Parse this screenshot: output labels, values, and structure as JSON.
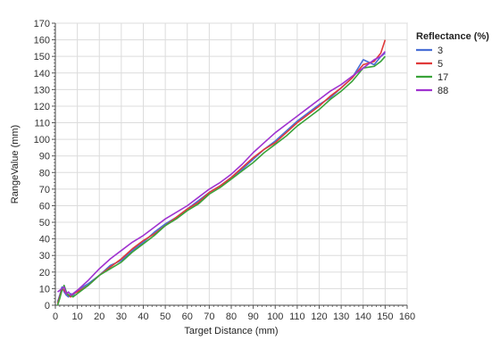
{
  "chart_data": {
    "type": "line",
    "title": "",
    "xlabel": "Target Distance (mm)",
    "ylabel": "RangeValue (mm)",
    "xlim": [
      0,
      160
    ],
    "ylim": [
      0,
      170
    ],
    "xticks": [
      0,
      10,
      20,
      30,
      40,
      50,
      60,
      70,
      80,
      90,
      100,
      110,
      120,
      130,
      140,
      150,
      160
    ],
    "yticks": [
      0,
      10,
      20,
      30,
      40,
      50,
      60,
      70,
      80,
      90,
      100,
      110,
      120,
      130,
      140,
      150,
      160,
      170
    ],
    "grid": true,
    "legend": {
      "title": "Reflectance (%)",
      "placement": "right-top"
    },
    "x": [
      1,
      2,
      3,
      4,
      5,
      6,
      7,
      8,
      10,
      15,
      20,
      25,
      30,
      35,
      40,
      45,
      50,
      55,
      60,
      65,
      70,
      75,
      80,
      85,
      90,
      95,
      100,
      105,
      110,
      115,
      120,
      125,
      130,
      135,
      140,
      145,
      148,
      150
    ],
    "series": [
      {
        "name": "3",
        "color": "#4a6fd6",
        "values": [
          2,
          6,
          11,
          8,
          6,
          5,
          7,
          6,
          9,
          13,
          18,
          24,
          27,
          33,
          38,
          44,
          49,
          53,
          58,
          63,
          68,
          72,
          77,
          82,
          88,
          94,
          99,
          105,
          111,
          116,
          121,
          125,
          131,
          137,
          148,
          145,
          150,
          152
        ]
      },
      {
        "name": "5",
        "color": "#e03a3a",
        "values": [
          1,
          5,
          10,
          9,
          7,
          6,
          5,
          7,
          8,
          12,
          18,
          23,
          28,
          34,
          39,
          43,
          48,
          53,
          58,
          62,
          68,
          72,
          77,
          83,
          89,
          94,
          98,
          104,
          110,
          115,
          120,
          126,
          131,
          137,
          145,
          147,
          152,
          160
        ]
      },
      {
        "name": "17",
        "color": "#3aa33a",
        "values": [
          0,
          4,
          9,
          12,
          8,
          6,
          6,
          5,
          7,
          12,
          18,
          22,
          26,
          32,
          37,
          42,
          48,
          52,
          57,
          61,
          67,
          71,
          76,
          81,
          86,
          92,
          97,
          102,
          108,
          113,
          118,
          124,
          129,
          135,
          143,
          144,
          147,
          150
        ]
      },
      {
        "name": "88",
        "color": "#a033d0",
        "values": [
          8,
          9,
          10,
          11,
          7,
          8,
          6,
          7,
          9,
          15,
          22,
          28,
          33,
          38,
          42,
          47,
          52,
          56,
          60,
          65,
          70,
          74,
          79,
          85,
          92,
          98,
          104,
          109,
          114,
          119,
          124,
          129,
          133,
          138,
          143,
          148,
          150,
          153
        ]
      }
    ]
  }
}
